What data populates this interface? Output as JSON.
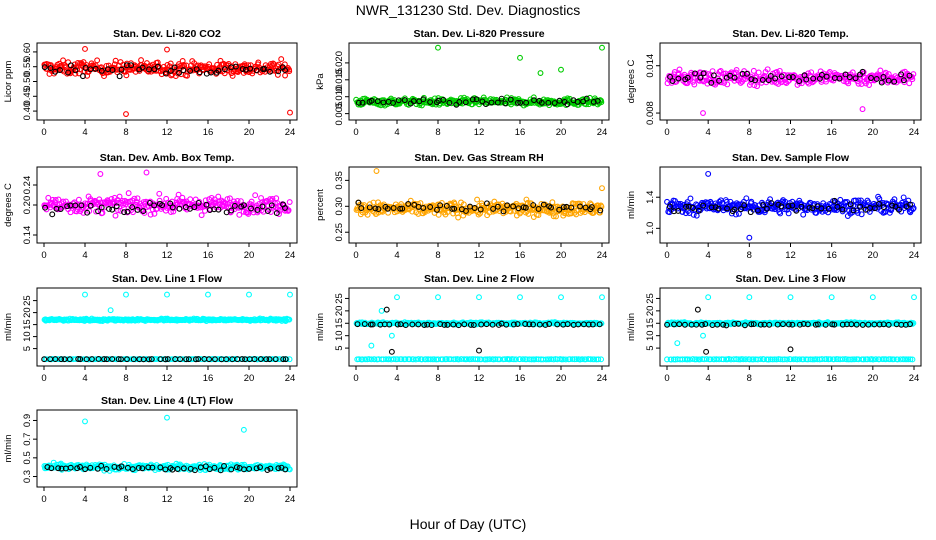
{
  "title": "NWR_131230  Std. Dev. Diagnostics",
  "x_axis_title": "Hour of Day (UTC)",
  "chart_data": [
    {
      "type": "scatter",
      "title": "Stan. Dev. Li-820 CO2",
      "ylabel": "Licor ppm",
      "xlim": [
        0,
        24
      ],
      "ylim": [
        0.38,
        0.62
      ],
      "xticks": [
        0,
        4,
        8,
        12,
        16,
        20,
        24
      ],
      "yticks": [
        {
          "v": 0.4,
          "l": "0.40"
        },
        {
          "v": 0.45,
          "l": "0.45"
        },
        {
          "v": 0.5,
          "l": "0.50"
        },
        {
          "v": 0.55,
          "l": "0.55"
        },
        {
          "v": 0.6,
          "l": "0.60"
        }
      ],
      "series": [
        {
          "color": "#ff0000",
          "bands": [
            {
              "center": 0.545,
              "spread": 0.04,
              "n": 300
            }
          ],
          "outliers": [
            [
              8,
              0.39
            ],
            [
              24,
              0.395
            ],
            [
              12,
              0.608
            ],
            [
              4,
              0.61
            ]
          ]
        },
        {
          "color": "#000000",
          "bands": [
            {
              "center": 0.54,
              "spread": 0.03,
              "n": 48
            }
          ],
          "outliers": []
        }
      ]
    },
    {
      "type": "scatter",
      "title": "Stan. Dev. Li-820 Pressure",
      "ylabel": "kPa",
      "xlim": [
        0,
        24
      ],
      "ylim": [
        0.004,
        0.025
      ],
      "xticks": [
        0,
        4,
        8,
        12,
        16,
        20,
        24
      ],
      "yticks": [
        {
          "v": 0.005,
          "l": "0.005"
        },
        {
          "v": 0.01,
          "l": "0.010"
        },
        {
          "v": 0.015,
          "l": "0.015"
        },
        {
          "v": 0.02,
          "l": "0.020"
        }
      ],
      "series": [
        {
          "color": "#00cc00",
          "bands": [
            {
              "center": 0.0085,
              "spread": 0.0018,
              "n": 320
            }
          ],
          "outliers": [
            [
              8,
              0.0245
            ],
            [
              24,
              0.0245
            ],
            [
              16,
              0.0215
            ],
            [
              20,
              0.018
            ],
            [
              18,
              0.017
            ]
          ]
        },
        {
          "color": "#000000",
          "bands": [
            {
              "center": 0.0085,
              "spread": 0.0013,
              "n": 48
            }
          ],
          "outliers": []
        }
      ]
    },
    {
      "type": "scatter",
      "title": "Stan. Dev. Li-820 Temp.",
      "ylabel": "degrees C",
      "xlim": [
        0,
        24
      ],
      "ylim": [
        0.0075,
        0.0165
      ],
      "xticks": [
        0,
        4,
        8,
        12,
        16,
        20,
        24
      ],
      "yticks": [
        {
          "v": 0.008,
          "l": "0.008"
        },
        {
          "v": 0.014,
          "l": "0.014"
        }
      ],
      "series": [
        {
          "color": "#ff00ff",
          "bands": [
            {
              "center": 0.0125,
              "spread": 0.0016,
              "n": 300
            }
          ],
          "outliers": [
            [
              3.5,
              0.008
            ],
            [
              19,
              0.0085
            ]
          ]
        },
        {
          "color": "#000000",
          "bands": [
            {
              "center": 0.0125,
              "spread": 0.0011,
              "n": 48
            }
          ],
          "outliers": []
        }
      ]
    },
    {
      "type": "scatter",
      "title": "Stan. Dev. Amb. Box Temp.",
      "ylabel": "degrees C",
      "xlim": [
        0,
        24
      ],
      "ylim": [
        0.13,
        0.27
      ],
      "xticks": [
        0,
        4,
        8,
        12,
        16,
        20,
        24
      ],
      "yticks": [
        {
          "v": 0.14,
          "l": "0.14"
        },
        {
          "v": 0.2,
          "l": "0.20"
        },
        {
          "v": 0.24,
          "l": "0.24"
        }
      ],
      "series": [
        {
          "color": "#ff00ff",
          "bands": [
            {
              "center": 0.2,
              "spread": 0.028,
              "n": 300
            }
          ],
          "outliers": [
            [
              10,
              0.265
            ],
            [
              5.5,
              0.262
            ]
          ]
        },
        {
          "color": "#000000",
          "bands": [
            {
              "center": 0.195,
              "spread": 0.02,
              "n": 48
            }
          ],
          "outliers": []
        }
      ]
    },
    {
      "type": "scatter",
      "title": "Stan. Dev. Gas Stream RH",
      "ylabel": "percent",
      "xlim": [
        0,
        24
      ],
      "ylim": [
        0.235,
        0.37
      ],
      "xticks": [
        0,
        4,
        8,
        12,
        16,
        20,
        24
      ],
      "yticks": [
        {
          "v": 0.25,
          "l": "0.25"
        },
        {
          "v": 0.3,
          "l": "0.30"
        },
        {
          "v": 0.35,
          "l": "0.35"
        }
      ],
      "series": [
        {
          "color": "#ffa500",
          "bands": [
            {
              "center": 0.295,
              "spread": 0.022,
              "n": 340
            }
          ],
          "outliers": [
            [
              2,
              0.368
            ],
            [
              24,
              0.335
            ]
          ]
        },
        {
          "color": "#000000",
          "bands": [
            {
              "center": 0.298,
              "spread": 0.016,
              "n": 48
            }
          ],
          "outliers": []
        }
      ]
    },
    {
      "type": "scatter",
      "title": "Stan. Dev. Sample Flow",
      "ylabel": "ml/min",
      "xlim": [
        0,
        24
      ],
      "ylim": [
        0.85,
        1.75
      ],
      "xticks": [
        0,
        4,
        8,
        12,
        16,
        20,
        24
      ],
      "yticks": [
        {
          "v": 1.0,
          "l": "1.0"
        },
        {
          "v": 1.4,
          "l": "1.4"
        }
      ],
      "series": [
        {
          "color": "#0000ff",
          "bands": [
            {
              "center": 1.28,
              "spread": 0.16,
              "n": 320
            }
          ],
          "outliers": [
            [
              8,
              0.88
            ],
            [
              4,
              1.7
            ]
          ]
        },
        {
          "color": "#000000",
          "bands": [
            {
              "center": 1.27,
              "spread": 0.1,
              "n": 48
            }
          ],
          "outliers": []
        }
      ]
    },
    {
      "type": "scatter",
      "title": "Stan. Dev. Line 1 Flow",
      "ylabel": "ml/min",
      "xlim": [
        0,
        24
      ],
      "ylim": [
        -1,
        29
      ],
      "xticks": [
        0,
        4,
        8,
        12,
        16,
        20,
        24
      ],
      "yticks": [
        {
          "v": 5,
          "l": "5"
        },
        {
          "v": 10,
          "l": "10"
        },
        {
          "v": 15,
          "l": "15"
        },
        {
          "v": 20,
          "l": "20"
        },
        {
          "v": 25,
          "l": "25"
        }
      ],
      "series": [
        {
          "color": "#00ffff",
          "bands": [
            {
              "center": 17,
              "spread": 0.8,
              "n": 300
            },
            {
              "center": 0.6,
              "spread": 0.15,
              "n": 120
            }
          ],
          "outliers": [
            [
              4,
              27.5
            ],
            [
              8,
              27.5
            ],
            [
              12,
              27.5
            ],
            [
              16,
              27.5
            ],
            [
              20,
              27.5
            ],
            [
              24,
              27.5
            ],
            [
              6.5,
              21
            ]
          ]
        },
        {
          "color": "#000000",
          "bands": [
            {
              "center": 0.6,
              "spread": 0.1,
              "n": 48
            }
          ],
          "outliers": []
        }
      ]
    },
    {
      "type": "scatter",
      "title": "Stan. Dev. Line 2 Flow",
      "ylabel": "ml/min",
      "xlim": [
        0,
        24
      ],
      "ylim": [
        -1,
        28
      ],
      "xticks": [
        0,
        4,
        8,
        12,
        16,
        20,
        24
      ],
      "yticks": [
        {
          "v": 5,
          "l": "5"
        },
        {
          "v": 10,
          "l": "10"
        },
        {
          "v": 15,
          "l": "15"
        },
        {
          "v": 20,
          "l": "20"
        },
        {
          "v": 25,
          "l": "25"
        }
      ],
      "series": [
        {
          "color": "#00ffff",
          "bands": [
            {
              "center": 15,
              "spread": 0.7,
              "n": 300
            },
            {
              "center": 0.5,
              "spread": 0.15,
              "n": 120
            }
          ],
          "outliers": [
            [
              4,
              25.5
            ],
            [
              8,
              25.5
            ],
            [
              12,
              25.5
            ],
            [
              16,
              25.5
            ],
            [
              20,
              25.5
            ],
            [
              24,
              25.5
            ],
            [
              2.5,
              20
            ],
            [
              3.5,
              10
            ],
            [
              1.5,
              6
            ]
          ]
        },
        {
          "color": "#000000",
          "bands": [
            {
              "center": 14.5,
              "spread": 0.5,
              "n": 46
            }
          ],
          "outliers": [
            [
              3,
              20.5
            ],
            [
              3.5,
              3.5
            ],
            [
              12,
              4
            ]
          ]
        }
      ]
    },
    {
      "type": "scatter",
      "title": "Stan. Dev. Line 3 Flow",
      "ylabel": "ml/min",
      "xlim": [
        0,
        24
      ],
      "ylim": [
        -1,
        28
      ],
      "xticks": [
        0,
        4,
        8,
        12,
        16,
        20,
        24
      ],
      "yticks": [
        {
          "v": 5,
          "l": "5"
        },
        {
          "v": 10,
          "l": "10"
        },
        {
          "v": 15,
          "l": "15"
        },
        {
          "v": 20,
          "l": "20"
        },
        {
          "v": 25,
          "l": "25"
        }
      ],
      "series": [
        {
          "color": "#00ffff",
          "bands": [
            {
              "center": 15,
              "spread": 0.7,
              "n": 300
            },
            {
              "center": 0.5,
              "spread": 0.15,
              "n": 120
            }
          ],
          "outliers": [
            [
              4,
              25.5
            ],
            [
              8,
              25.5
            ],
            [
              12,
              25.5
            ],
            [
              16,
              25.5
            ],
            [
              20,
              25.5
            ],
            [
              24,
              25.5
            ],
            [
              1,
              7
            ],
            [
              3.5,
              10
            ]
          ]
        },
        {
          "color": "#000000",
          "bands": [
            {
              "center": 14.5,
              "spread": 0.5,
              "n": 46
            }
          ],
          "outliers": [
            [
              3,
              20.5
            ],
            [
              3.8,
              3.5
            ],
            [
              12,
              4.5
            ]
          ]
        }
      ]
    },
    {
      "type": "scatter",
      "title": "Stan. Dev. Line 4 (LT) Flow",
      "ylabel": "ml/min",
      "xlim": [
        0,
        24
      ],
      "ylim": [
        0.22,
        0.98
      ],
      "xticks": [
        0,
        4,
        8,
        12,
        16,
        20,
        24
      ],
      "yticks": [
        {
          "v": 0.3,
          "l": "0.3"
        },
        {
          "v": 0.5,
          "l": "0.5"
        },
        {
          "v": 0.7,
          "l": "0.7"
        },
        {
          "v": 0.9,
          "l": "0.9"
        }
      ],
      "series": [
        {
          "color": "#00ffff",
          "bands": [
            {
              "center": 0.4,
              "spread": 0.055,
              "n": 320
            }
          ],
          "outliers": [
            [
              4,
              0.89
            ],
            [
              12,
              0.93
            ],
            [
              19.5,
              0.8
            ]
          ]
        },
        {
          "color": "#000000",
          "bands": [
            {
              "center": 0.39,
              "spread": 0.04,
              "n": 48
            }
          ],
          "outliers": []
        }
      ]
    }
  ]
}
